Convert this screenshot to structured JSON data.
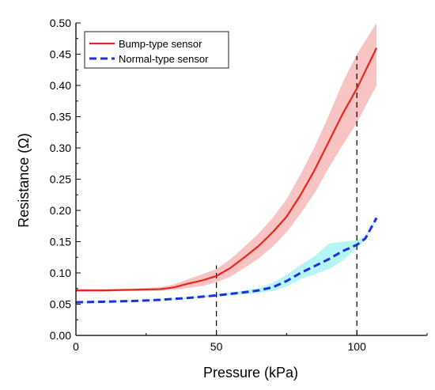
{
  "chart_data": {
    "type": "line",
    "xlabel": "Pressure (kPa)",
    "ylabel": "Resistance (Ω)",
    "xlim": [
      0,
      125
    ],
    "ylim": [
      0,
      0.5
    ],
    "x_ticks": [
      {
        "value": 0,
        "label": "0"
      },
      {
        "value": 50,
        "label": "50"
      },
      {
        "value": 100,
        "label": "100"
      }
    ],
    "y_ticks": [
      {
        "value": 0,
        "label": "0.00"
      },
      {
        "value": 0.05,
        "label": "0.05"
      },
      {
        "value": 0.1,
        "label": "0.10"
      },
      {
        "value": 0.15,
        "label": "0.15"
      },
      {
        "value": 0.2,
        "label": "0.20"
      },
      {
        "value": 0.25,
        "label": "0.25"
      },
      {
        "value": 0.3,
        "label": "0.30"
      },
      {
        "value": 0.35,
        "label": "0.35"
      },
      {
        "value": 0.4,
        "label": "0.40"
      },
      {
        "value": 0.45,
        "label": "0.45"
      },
      {
        "value": 0.5,
        "label": "0.50"
      }
    ],
    "grid": false,
    "legend_position": "top-left",
    "reference_lines": [
      {
        "x": 50,
        "y_top": 0.112
      },
      {
        "x": 100,
        "y_top": 0.447
      }
    ],
    "series": [
      {
        "name": "Bump-type sensor",
        "color": "#e8251f",
        "band_color": "#f4a3a3",
        "line_style": "solid",
        "x": [
          0,
          10,
          20,
          30,
          35,
          40,
          45,
          50,
          55,
          60,
          65,
          70,
          75,
          80,
          85,
          90,
          95,
          100,
          107
        ],
        "y": [
          0.072,
          0.072,
          0.073,
          0.074,
          0.077,
          0.083,
          0.088,
          0.095,
          0.108,
          0.125,
          0.143,
          0.165,
          0.19,
          0.225,
          0.265,
          0.31,
          0.355,
          0.395,
          0.46
        ],
        "lower": [
          0.07,
          0.07,
          0.071,
          0.072,
          0.073,
          0.076,
          0.079,
          0.085,
          0.094,
          0.108,
          0.123,
          0.142,
          0.165,
          0.195,
          0.228,
          0.268,
          0.305,
          0.34,
          0.4
        ],
        "upper": [
          0.074,
          0.074,
          0.075,
          0.077,
          0.082,
          0.09,
          0.098,
          0.106,
          0.122,
          0.142,
          0.163,
          0.188,
          0.218,
          0.258,
          0.302,
          0.352,
          0.405,
          0.45,
          0.5
        ]
      },
      {
        "name": "Normal-type sensor",
        "color": "#1f2fd9",
        "band_color": "#8ff0f0",
        "line_style": "dashed",
        "x": [
          0,
          10,
          20,
          30,
          40,
          50,
          60,
          65,
          70,
          75,
          80,
          85,
          90,
          95,
          100,
          103,
          107
        ],
        "y": [
          0.053,
          0.054,
          0.055,
          0.057,
          0.06,
          0.064,
          0.069,
          0.072,
          0.077,
          0.087,
          0.1,
          0.111,
          0.122,
          0.135,
          0.145,
          0.155,
          0.188
        ],
        "lower": [
          0.052,
          0.053,
          0.054,
          0.056,
          0.059,
          0.062,
          0.066,
          0.068,
          0.071,
          0.078,
          0.09,
          0.098,
          0.106,
          0.12,
          0.14,
          0.152,
          0.186
        ],
        "upper": [
          0.054,
          0.055,
          0.056,
          0.058,
          0.061,
          0.066,
          0.072,
          0.076,
          0.084,
          0.097,
          0.113,
          0.127,
          0.147,
          0.15,
          0.152,
          0.16,
          0.19
        ]
      }
    ]
  }
}
